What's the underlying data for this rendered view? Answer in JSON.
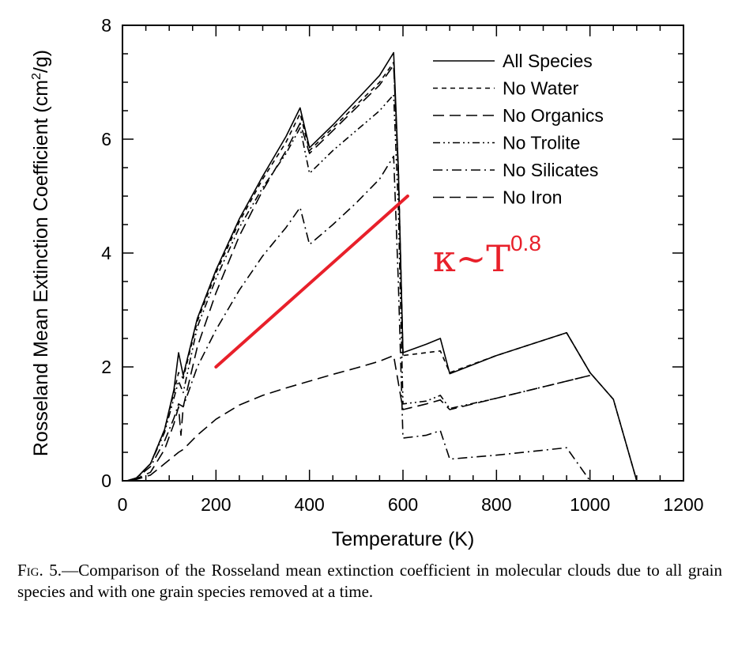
{
  "chart_data": {
    "type": "line",
    "xlabel": "Temperature (K)",
    "ylabel_main": "Rosseland Mean Extinction Coefficient (cm",
    "ylabel_sup": "2",
    "ylabel_end": "/g)",
    "xlim": [
      0,
      1200
    ],
    "ylim": [
      0,
      8
    ],
    "xticks": [
      "0",
      "200",
      "400",
      "600",
      "800",
      "1000",
      "1200"
    ],
    "yticks": [
      "0",
      "2",
      "4",
      "6",
      "8"
    ],
    "grid": false,
    "legend_position": "top-right",
    "series": [
      {
        "name": "All Species",
        "dash": "solid",
        "points": [
          [
            10,
            0
          ],
          [
            30,
            0.05
          ],
          [
            60,
            0.3
          ],
          [
            90,
            0.9
          ],
          [
            110,
            1.6
          ],
          [
            120,
            2.25
          ],
          [
            130,
            1.85
          ],
          [
            160,
            2.85
          ],
          [
            200,
            3.7
          ],
          [
            250,
            4.6
          ],
          [
            300,
            5.35
          ],
          [
            350,
            6.05
          ],
          [
            380,
            6.55
          ],
          [
            400,
            5.85
          ],
          [
            450,
            6.25
          ],
          [
            500,
            6.68
          ],
          [
            550,
            7.12
          ],
          [
            580,
            7.52
          ],
          [
            590,
            5.5
          ],
          [
            600,
            2.25
          ],
          [
            650,
            2.4
          ],
          [
            680,
            2.5
          ],
          [
            700,
            1.88
          ],
          [
            800,
            2.2
          ],
          [
            950,
            2.6
          ],
          [
            1000,
            1.9
          ],
          [
            1050,
            1.43
          ],
          [
            1100,
            0
          ]
        ]
      },
      {
        "name": "No Water",
        "dash": "short-dash",
        "points": [
          [
            10,
            0
          ],
          [
            30,
            0.05
          ],
          [
            60,
            0.3
          ],
          [
            90,
            0.9
          ],
          [
            110,
            1.55
          ],
          [
            120,
            1.9
          ],
          [
            130,
            1.8
          ],
          [
            160,
            2.8
          ],
          [
            200,
            3.65
          ],
          [
            250,
            4.55
          ],
          [
            300,
            5.3
          ],
          [
            350,
            5.95
          ],
          [
            380,
            6.45
          ],
          [
            400,
            5.8
          ],
          [
            450,
            6.2
          ],
          [
            500,
            6.6
          ],
          [
            550,
            7.0
          ],
          [
            580,
            7.35
          ],
          [
            590,
            5.5
          ],
          [
            600,
            2.2
          ],
          [
            680,
            2.28
          ],
          [
            700,
            1.9
          ],
          [
            800,
            2.2
          ],
          [
            950,
            2.6
          ],
          [
            1000,
            1.9
          ],
          [
            1050,
            1.43
          ],
          [
            1100,
            0
          ]
        ]
      },
      {
        "name": "No Organics",
        "dash": "long-dash",
        "points": [
          [
            20,
            0
          ],
          [
            60,
            0.1
          ],
          [
            90,
            0.3
          ],
          [
            120,
            0.5
          ],
          [
            130,
            0.55
          ],
          [
            160,
            0.8
          ],
          [
            200,
            1.08
          ],
          [
            250,
            1.33
          ],
          [
            300,
            1.5
          ],
          [
            350,
            1.63
          ],
          [
            400,
            1.75
          ],
          [
            450,
            1.87
          ],
          [
            500,
            1.98
          ],
          [
            550,
            2.1
          ],
          [
            580,
            2.2
          ],
          [
            600,
            1.25
          ],
          [
            650,
            1.35
          ],
          [
            680,
            1.42
          ],
          [
            700,
            1.25
          ],
          [
            800,
            1.45
          ],
          [
            950,
            1.75
          ],
          [
            1000,
            1.85
          ]
        ]
      },
      {
        "name": "No Trolite",
        "dash": "dash-dot-dot",
        "points": [
          [
            10,
            0
          ],
          [
            30,
            0.05
          ],
          [
            60,
            0.3
          ],
          [
            90,
            0.85
          ],
          [
            110,
            1.45
          ],
          [
            120,
            1.75
          ],
          [
            130,
            1.55
          ],
          [
            160,
            2.7
          ],
          [
            200,
            3.55
          ],
          [
            250,
            4.45
          ],
          [
            300,
            5.15
          ],
          [
            350,
            5.75
          ],
          [
            380,
            6.2
          ],
          [
            400,
            5.4
          ],
          [
            450,
            5.8
          ],
          [
            500,
            6.15
          ],
          [
            550,
            6.5
          ],
          [
            580,
            6.78
          ],
          [
            590,
            4.8
          ],
          [
            600,
            1.35
          ],
          [
            650,
            1.4
          ],
          [
            680,
            1.5
          ],
          [
            700,
            1.27
          ],
          [
            800,
            1.45
          ],
          [
            950,
            1.75
          ],
          [
            1000,
            1.85
          ]
        ]
      },
      {
        "name": "No Silicates",
        "dash": "dash-dot",
        "points": [
          [
            10,
            0
          ],
          [
            30,
            0.05
          ],
          [
            60,
            0.25
          ],
          [
            90,
            0.7
          ],
          [
            110,
            1.1
          ],
          [
            120,
            1.35
          ],
          [
            130,
            1.3
          ],
          [
            160,
            2.0
          ],
          [
            200,
            2.65
          ],
          [
            250,
            3.35
          ],
          [
            300,
            3.95
          ],
          [
            350,
            4.45
          ],
          [
            380,
            4.8
          ],
          [
            400,
            4.15
          ],
          [
            450,
            4.5
          ],
          [
            500,
            4.88
          ],
          [
            550,
            5.3
          ],
          [
            580,
            5.7
          ],
          [
            590,
            3.5
          ],
          [
            600,
            0.75
          ],
          [
            650,
            0.8
          ],
          [
            680,
            0.88
          ],
          [
            700,
            0.38
          ],
          [
            800,
            0.45
          ],
          [
            950,
            0.58
          ],
          [
            1000,
            0
          ]
        ]
      },
      {
        "name": "No Iron",
        "dash": "long-dash",
        "points": [
          [
            20,
            0
          ],
          [
            60,
            0.15
          ],
          [
            90,
            0.55
          ],
          [
            110,
            1.0
          ],
          [
            120,
            1.3
          ],
          [
            125,
            0.8
          ],
          [
            130,
            1.3
          ],
          [
            160,
            2.35
          ],
          [
            200,
            3.3
          ],
          [
            250,
            4.3
          ],
          [
            300,
            5.1
          ],
          [
            350,
            5.8
          ],
          [
            380,
            6.28
          ],
          [
            400,
            5.75
          ],
          [
            450,
            6.15
          ],
          [
            500,
            6.55
          ],
          [
            550,
            6.95
          ],
          [
            580,
            7.3
          ],
          [
            590,
            5.4
          ],
          [
            600,
            2.2
          ]
        ]
      }
    ],
    "annotation": {
      "text_base": "κ~T",
      "text_exp": "0.8",
      "color": "#e8202a",
      "line_from": [
        200,
        2.0
      ],
      "line_to": [
        610,
        5.0
      ]
    }
  },
  "caption": {
    "label": "Fig. 5.",
    "text": "—Comparison of the Rosseland mean extinction coefficient in molecular clouds due to all grain species and with one grain species removed at a time."
  }
}
